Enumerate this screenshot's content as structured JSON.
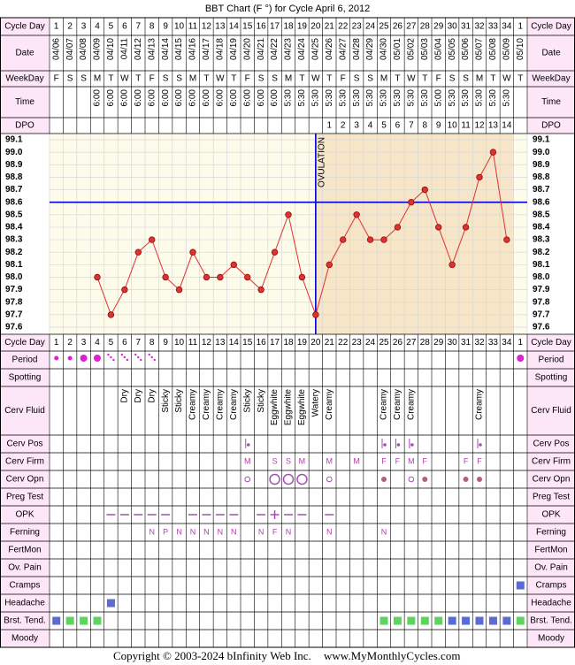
{
  "title": "BBT Chart (F °) for Cycle April 6, 2012",
  "header_labels": {
    "cycle_day": "Cycle Day",
    "date": "Date",
    "weekday": "WeekDay",
    "time": "Time",
    "dpo": "DPO"
  },
  "chart_data": {
    "type": "line",
    "cycle_days": [
      1,
      2,
      3,
      4,
      5,
      6,
      7,
      8,
      9,
      10,
      11,
      12,
      13,
      14,
      15,
      16,
      17,
      18,
      19,
      20,
      21,
      22,
      23,
      24,
      25,
      26,
      27,
      28,
      29,
      30,
      31,
      32,
      33,
      34,
      1
    ],
    "dates": [
      "04/06",
      "04/07",
      "04/08",
      "04/09",
      "04/10",
      "04/11",
      "04/12",
      "04/13",
      "04/14",
      "04/15",
      "04/16",
      "04/17",
      "04/18",
      "04/19",
      "04/20",
      "04/21",
      "04/22",
      "04/23",
      "04/24",
      "04/25",
      "04/26",
      "04/27",
      "04/28",
      "04/29",
      "04/30",
      "05/01",
      "05/02",
      "05/03",
      "05/04",
      "05/05",
      "05/06",
      "05/07",
      "05/08",
      "05/09",
      "05/10"
    ],
    "weekdays": [
      "F",
      "S",
      "S",
      "M",
      "T",
      "W",
      "T",
      "F",
      "S",
      "S",
      "M",
      "T",
      "W",
      "T",
      "F",
      "S",
      "S",
      "M",
      "T",
      "W",
      "T",
      "F",
      "S",
      "S",
      "M",
      "T",
      "W",
      "T",
      "F",
      "S",
      "S",
      "M",
      "T",
      "W",
      "T"
    ],
    "times": [
      null,
      null,
      null,
      "6:00",
      "6:00",
      "6:00",
      "6:00",
      "6:00",
      "6:00",
      "6:00",
      "6:00",
      "6:00",
      "6:00",
      "6:00",
      "6:00",
      "6:00",
      "6:00",
      "5:30",
      "5:30",
      "5:30",
      "5:30",
      "5:30",
      "5:30",
      "5:30",
      "5:30",
      "5:30",
      "5:30",
      "5:30",
      "5:00",
      "5:30",
      "5:30",
      "5:30",
      "5:30",
      "5:30",
      null
    ],
    "dpo": [
      null,
      null,
      null,
      null,
      null,
      null,
      null,
      null,
      null,
      null,
      null,
      null,
      null,
      null,
      null,
      null,
      null,
      null,
      null,
      null,
      1,
      2,
      3,
      4,
      5,
      6,
      7,
      8,
      9,
      10,
      11,
      12,
      13,
      14,
      null
    ],
    "values": [
      null,
      null,
      null,
      98.0,
      97.7,
      97.9,
      98.2,
      98.3,
      98.0,
      97.9,
      98.2,
      98.0,
      98.0,
      98.1,
      98.0,
      97.9,
      98.2,
      98.5,
      98.0,
      97.7,
      98.1,
      98.3,
      98.5,
      98.3,
      98.3,
      98.4,
      98.6,
      98.7,
      98.4,
      98.1,
      98.4,
      98.8,
      99.0,
      98.3,
      null
    ],
    "color": "#e03030",
    "ylim": [
      97.6,
      99.1
    ],
    "yticks": [
      {
        "value": 99.1,
        "label": "99.1"
      },
      {
        "value": 99.0,
        "label": "99.0"
      },
      {
        "value": 98.9,
        "label": "98.9"
      },
      {
        "value": 98.8,
        "label": "98.8"
      },
      {
        "value": 98.7,
        "label": "98.7"
      },
      {
        "value": 98.6,
        "label": "98.6"
      },
      {
        "value": 98.5,
        "label": "98.5"
      },
      {
        "value": 98.4,
        "label": "98.4"
      },
      {
        "value": 98.3,
        "label": "98.3"
      },
      {
        "value": 98.2,
        "label": "98.2"
      },
      {
        "value": 98.1,
        "label": "98.1"
      },
      {
        "value": 98.0,
        "label": "98.0"
      },
      {
        "value": 97.9,
        "label": "97.9"
      },
      {
        "value": 97.8,
        "label": "97.8"
      },
      {
        "value": 97.7,
        "label": "97.7"
      },
      {
        "value": 97.6,
        "label": "97.6"
      }
    ],
    "grid": true,
    "coverline": 98.6,
    "ovulation_day": 20,
    "ovulation_label": "OVULATION"
  },
  "rows": [
    {
      "label": "Period",
      "kind": "period",
      "values": [
        "light",
        "light",
        "heavy",
        "heavy",
        "spotting",
        "spotting",
        "spotting",
        "spotting",
        null,
        null,
        null,
        null,
        null,
        null,
        null,
        null,
        null,
        null,
        null,
        null,
        null,
        null,
        null,
        null,
        null,
        null,
        null,
        null,
        null,
        null,
        null,
        null,
        null,
        null,
        "heavy"
      ]
    },
    {
      "label": "Spotting",
      "kind": "none"
    },
    {
      "label": "Cerv Fluid",
      "kind": "vertical-text",
      "values": [
        null,
        null,
        null,
        null,
        null,
        "Dry",
        "Dry",
        "Dry",
        "Sticky",
        "Sticky",
        "Creamy",
        "Creamy",
        "Creamy",
        "Creamy",
        "Sticky",
        "Sticky",
        "Eggwhite",
        "Eggwhite",
        "Eggwhite",
        "Watery",
        "Creamy",
        null,
        null,
        null,
        "Creamy",
        "Creamy",
        "Creamy",
        null,
        null,
        null,
        null,
        "Creamy",
        null,
        null,
        null
      ]
    },
    {
      "label": "Cerv Pos",
      "kind": "symbols",
      "values": [
        null,
        null,
        null,
        null,
        null,
        null,
        null,
        null,
        null,
        null,
        null,
        null,
        null,
        null,
        "pos",
        null,
        null,
        null,
        null,
        null,
        null,
        null,
        null,
        null,
        "pos",
        "pos",
        "pos",
        null,
        null,
        null,
        null,
        "pos",
        null,
        null,
        null
      ]
    },
    {
      "label": "Cerv Firm",
      "kind": "letters",
      "values": [
        null,
        null,
        null,
        null,
        null,
        null,
        null,
        null,
        null,
        null,
        null,
        null,
        null,
        null,
        "M",
        null,
        "S",
        "S",
        "M",
        null,
        "M",
        null,
        "M",
        null,
        "F",
        "F",
        "M",
        "F",
        null,
        null,
        "F",
        "F",
        null,
        null,
        null
      ]
    },
    {
      "label": "Cerv Opn",
      "kind": "symbols",
      "values": [
        null,
        null,
        null,
        null,
        null,
        null,
        null,
        null,
        null,
        null,
        null,
        null,
        null,
        null,
        "small-circle",
        null,
        "big-circle",
        "big-circle",
        "big-circle",
        null,
        "small-circle",
        null,
        null,
        null,
        "dot",
        null,
        "small-circle",
        "dot",
        null,
        null,
        "dot",
        "dot",
        null,
        null,
        null
      ]
    },
    {
      "label": "Preg Test",
      "kind": "none"
    },
    {
      "label": "OPK",
      "kind": "symbols",
      "values": [
        null,
        null,
        null,
        null,
        "dash",
        "dash",
        "dash",
        "dash",
        "dash",
        null,
        "dash",
        "dash",
        "dash",
        "dash",
        null,
        "dash",
        "plus",
        "dash",
        "dash",
        null,
        "dash",
        null,
        null,
        null,
        null,
        null,
        null,
        null,
        null,
        null,
        null,
        null,
        null,
        null,
        null
      ]
    },
    {
      "label": "Ferning",
      "kind": "letters",
      "values": [
        null,
        null,
        null,
        null,
        null,
        null,
        null,
        "N",
        "P",
        "N",
        "N",
        "N",
        "N",
        "N",
        null,
        "N",
        "F",
        "N",
        null,
        null,
        "N",
        null,
        null,
        null,
        "N",
        null,
        null,
        null,
        null,
        null,
        null,
        null,
        null,
        null,
        null
      ]
    },
    {
      "label": "FertMon",
      "kind": "none"
    },
    {
      "label": "Ov. Pain",
      "kind": "none"
    },
    {
      "label": "Cramps",
      "kind": "squares",
      "values": [
        null,
        null,
        null,
        null,
        null,
        null,
        null,
        null,
        null,
        null,
        null,
        null,
        null,
        null,
        null,
        null,
        null,
        null,
        null,
        null,
        null,
        null,
        null,
        null,
        null,
        null,
        null,
        null,
        null,
        null,
        null,
        null,
        null,
        null,
        "blue"
      ]
    },
    {
      "label": "Headache",
      "kind": "squares",
      "values": [
        null,
        null,
        null,
        null,
        "blue",
        null,
        null,
        null,
        null,
        null,
        null,
        null,
        null,
        null,
        null,
        null,
        null,
        null,
        null,
        null,
        null,
        null,
        null,
        null,
        null,
        null,
        null,
        null,
        null,
        null,
        null,
        null,
        null,
        null,
        null
      ]
    },
    {
      "label": "Brst. Tend.",
      "kind": "squares",
      "values": [
        "blue",
        "green",
        "green",
        "green",
        null,
        null,
        null,
        null,
        null,
        null,
        null,
        null,
        null,
        null,
        null,
        null,
        null,
        null,
        null,
        null,
        null,
        null,
        null,
        null,
        "green",
        "green",
        "green",
        "green",
        "green",
        "blue",
        "blue",
        "blue",
        "blue",
        "blue",
        "green"
      ]
    },
    {
      "label": "Moody",
      "kind": "none"
    }
  ],
  "copyright": "Copyright © 2003-2024 bInfinity Web Inc.",
  "website": "www.MyMonthlyCycles.com"
}
